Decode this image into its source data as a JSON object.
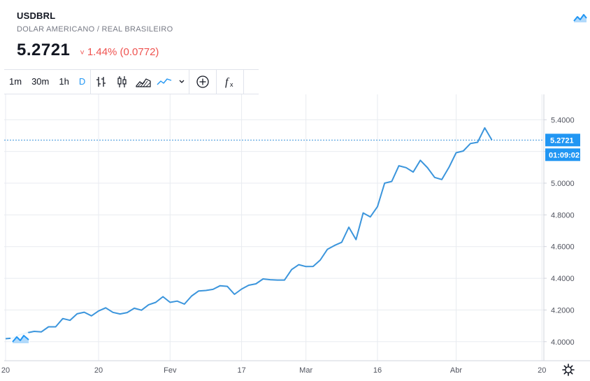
{
  "header": {
    "symbol": "USDBRL",
    "description": "DOLAR AMERICANO / REAL BRASILEIRO",
    "price": "5.2721",
    "change_arrow": "˅",
    "change": "1.44% (0.0772)"
  },
  "toolbar": {
    "intervals": [
      "1m",
      "30m",
      "1h",
      "D"
    ],
    "active_interval": "D",
    "icons": [
      "bar-chart-icon",
      "candlestick-icon",
      "area-chart-icon",
      "line-chart-icon",
      "chevron-down-icon",
      "add-compare-icon",
      "indicators-icon"
    ]
  },
  "colors": {
    "line": "#3b95dc",
    "down": "#ef5350",
    "grid": "#e8ebf0",
    "axis_text": "#50535e",
    "price_label_bg": "#2196f3"
  },
  "chart_data": {
    "type": "line",
    "x_tick_labels": [
      "20",
      "20",
      "Fev",
      "17",
      "Mar",
      "16",
      "Abr",
      "20"
    ],
    "y_tick_labels": [
      "4.0000",
      "4.2000",
      "4.4000",
      "4.6000",
      "4.8000",
      "5.0000",
      "5.2000",
      "5.4000"
    ],
    "ylim": [
      3.88,
      5.56
    ],
    "last_price_label": "5.2721",
    "countdown_label": "01:09:02",
    "grid": true,
    "series": [
      {
        "values": [
          4.019,
          4.023,
          4.044,
          4.056,
          4.065,
          4.062,
          4.094,
          4.094,
          4.146,
          4.135,
          4.176,
          4.186,
          4.163,
          4.194,
          4.214,
          4.185,
          4.175,
          4.184,
          4.211,
          4.199,
          4.233,
          4.248,
          4.284,
          4.248,
          4.256,
          4.237,
          4.288,
          4.32,
          4.323,
          4.33,
          4.353,
          4.349,
          4.299,
          4.332,
          4.356,
          4.365,
          4.396,
          4.391,
          4.389,
          4.389,
          4.455,
          4.486,
          4.474,
          4.475,
          4.515,
          4.583,
          4.607,
          4.627,
          4.722,
          4.644,
          4.812,
          4.787,
          4.852,
          5.0,
          5.011,
          5.11,
          5.098,
          5.07,
          5.144,
          5.097,
          5.036,
          5.023,
          5.1,
          5.192,
          5.203,
          5.25,
          5.258,
          5.349,
          5.272
        ]
      }
    ]
  }
}
